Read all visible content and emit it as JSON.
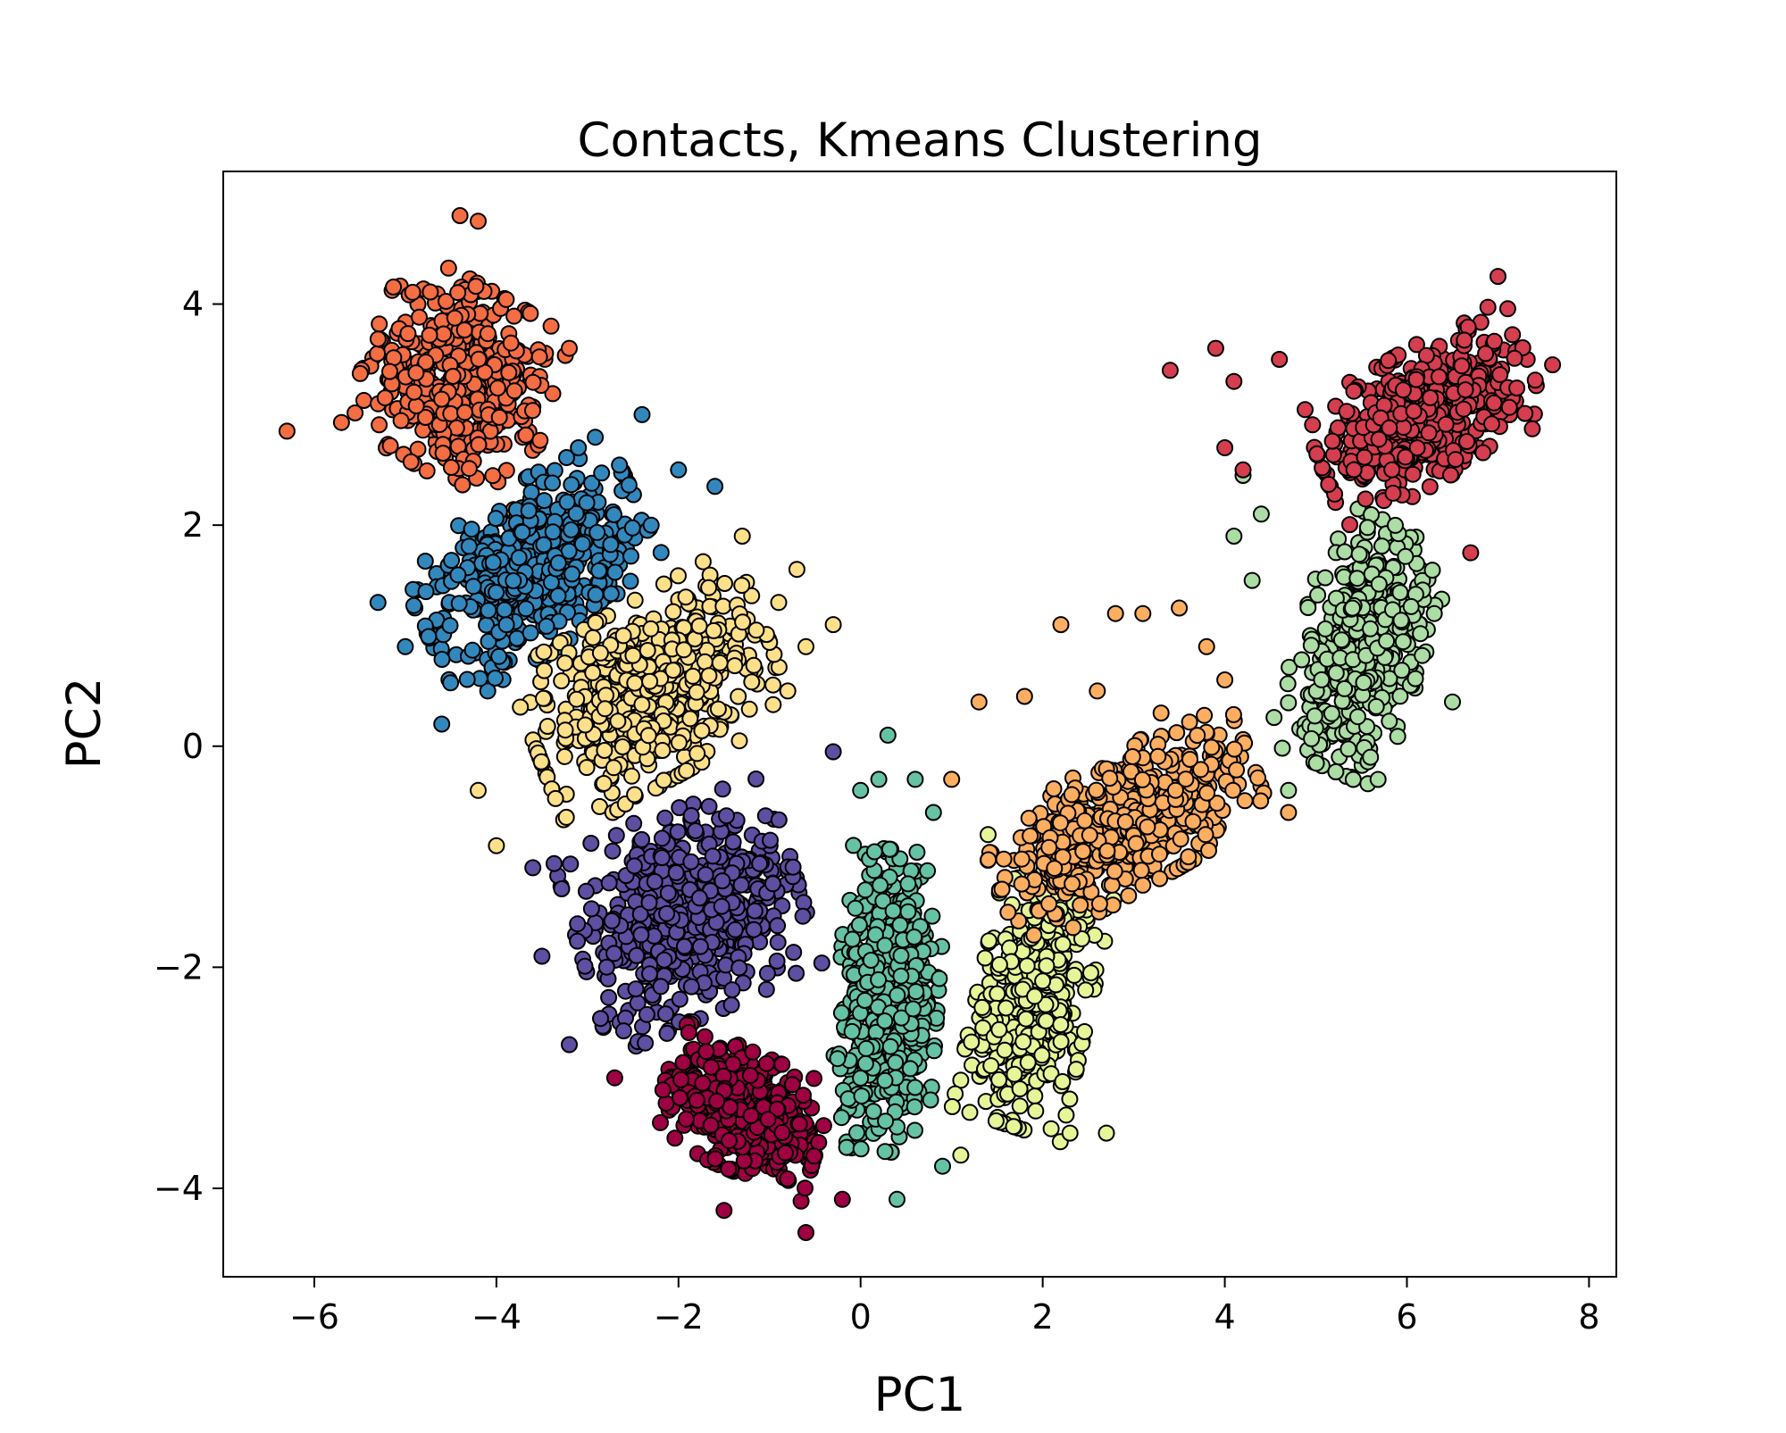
{
  "chart_data": {
    "type": "scatter",
    "title": "Contacts, Kmeans Clustering",
    "xlabel": "PC1",
    "ylabel": "PC2",
    "xlim": [
      -7.0,
      8.3
    ],
    "ylim": [
      -4.8,
      5.2
    ],
    "xticks": [
      -6,
      -4,
      -2,
      0,
      2,
      4,
      6,
      8
    ],
    "yticks": [
      -4,
      -2,
      0,
      2,
      4
    ],
    "xtick_labels": [
      "−6",
      "−4",
      "−2",
      "0",
      "2",
      "4",
      "6",
      "8"
    ],
    "ytick_labels": [
      "−4",
      "−2",
      "0",
      "2",
      "4"
    ],
    "grid": false,
    "legend": "none",
    "marker_edge_color": "#000000",
    "clusters": [
      {
        "color": "#f46d43",
        "center": [
          -4.4,
          3.3
        ],
        "spread": [
          0.75,
          0.65
        ],
        "angle_deg": -25,
        "count": 450,
        "outliers": [
          [
            -6.3,
            2.85
          ],
          [
            -4.4,
            4.8
          ],
          [
            -4.2,
            4.75
          ],
          [
            -3.2,
            3.6
          ],
          [
            -3.4,
            3.8
          ]
        ]
      },
      {
        "color": "#3288bd",
        "center": [
          -3.6,
          1.6
        ],
        "spread": [
          0.95,
          0.55
        ],
        "angle_deg": 30,
        "count": 500,
        "outliers": [
          [
            -5.3,
            1.3
          ],
          [
            -4.6,
            0.2
          ],
          [
            -2.0,
            2.5
          ],
          [
            -1.6,
            2.35
          ],
          [
            -2.3,
            2.0
          ],
          [
            -2.4,
            3.0
          ],
          [
            -5.0,
            0.9
          ]
        ]
      },
      {
        "color": "#fee08b",
        "center": [
          -2.3,
          0.5
        ],
        "spread": [
          1.0,
          0.6
        ],
        "angle_deg": 25,
        "count": 520,
        "outliers": [
          [
            -1.3,
            1.9
          ],
          [
            -0.9,
            1.3
          ],
          [
            -0.3,
            1.1
          ],
          [
            -0.7,
            1.6
          ],
          [
            -0.6,
            0.9
          ],
          [
            -4.2,
            -0.4
          ],
          [
            -4.0,
            -0.9
          ],
          [
            -0.8,
            0.5
          ]
        ]
      },
      {
        "color": "#5e4fa2",
        "center": [
          -1.9,
          -1.5
        ],
        "spread": [
          0.9,
          0.7
        ],
        "angle_deg": 20,
        "count": 540,
        "outliers": [
          [
            -3.5,
            -1.9
          ],
          [
            -3.2,
            -2.7
          ],
          [
            -0.3,
            -0.05
          ],
          [
            -3.6,
            -1.1
          ]
        ]
      },
      {
        "color": "#9e0142",
        "center": [
          -1.3,
          -3.3
        ],
        "spread": [
          0.65,
          0.4
        ],
        "angle_deg": -20,
        "count": 440,
        "outliers": [
          [
            -0.6,
            -4.4
          ],
          [
            -2.7,
            -3.0
          ],
          [
            -0.2,
            -4.1
          ],
          [
            -1.5,
            -4.2
          ]
        ]
      },
      {
        "color": "#66c2a5",
        "center": [
          0.3,
          -2.3
        ],
        "spread": [
          0.4,
          1.0
        ],
        "angle_deg": -5,
        "count": 520,
        "outliers": [
          [
            0.3,
            0.1
          ],
          [
            0.6,
            -0.3
          ],
          [
            0.8,
            -0.6
          ],
          [
            0.0,
            -0.4
          ],
          [
            0.9,
            -3.8
          ],
          [
            0.4,
            -4.1
          ],
          [
            0.2,
            -0.3
          ]
        ]
      },
      {
        "color": "#e6f598",
        "center": [
          1.9,
          -2.3
        ],
        "spread": [
          0.45,
          0.85
        ],
        "angle_deg": -15,
        "count": 460,
        "outliers": [
          [
            2.3,
            -3.5
          ],
          [
            1.1,
            -3.7
          ],
          [
            1.4,
            -0.8
          ],
          [
            2.7,
            -3.5
          ]
        ]
      },
      {
        "color": "#fdae61",
        "center": [
          2.9,
          -0.7
        ],
        "spread": [
          1.1,
          0.45
        ],
        "angle_deg": 25,
        "count": 480,
        "outliers": [
          [
            1.3,
            0.4
          ],
          [
            2.2,
            1.1
          ],
          [
            2.8,
            1.2
          ],
          [
            3.1,
            1.2
          ],
          [
            3.5,
            1.25
          ],
          [
            3.8,
            0.9
          ],
          [
            4.0,
            0.6
          ],
          [
            3.3,
            0.3
          ],
          [
            2.6,
            0.5
          ],
          [
            1.8,
            0.45
          ],
          [
            4.7,
            -0.6
          ],
          [
            1.0,
            -0.3
          ],
          [
            3.6,
            -1.0
          ]
        ]
      },
      {
        "color": "#abdda4",
        "center": [
          5.5,
          0.9
        ],
        "spread": [
          0.5,
          0.85
        ],
        "angle_deg": -20,
        "count": 430,
        "outliers": [
          [
            4.2,
            2.45
          ],
          [
            4.1,
            1.9
          ],
          [
            4.3,
            1.5
          ],
          [
            6.5,
            0.4
          ],
          [
            6.3,
            1.2
          ],
          [
            4.7,
            -0.4
          ],
          [
            5.6,
            -0.1
          ],
          [
            4.4,
            2.1
          ]
        ]
      },
      {
        "color": "#d53e4f",
        "center": [
          6.2,
          3.0
        ],
        "spread": [
          0.9,
          0.45
        ],
        "angle_deg": 25,
        "count": 440,
        "outliers": [
          [
            3.4,
            3.4
          ],
          [
            3.9,
            3.6
          ],
          [
            4.1,
            3.3
          ],
          [
            4.6,
            3.5
          ],
          [
            4.0,
            2.7
          ],
          [
            4.2,
            2.5
          ],
          [
            7.0,
            4.25
          ],
          [
            7.6,
            3.45
          ],
          [
            6.7,
            1.75
          ]
        ]
      }
    ]
  }
}
